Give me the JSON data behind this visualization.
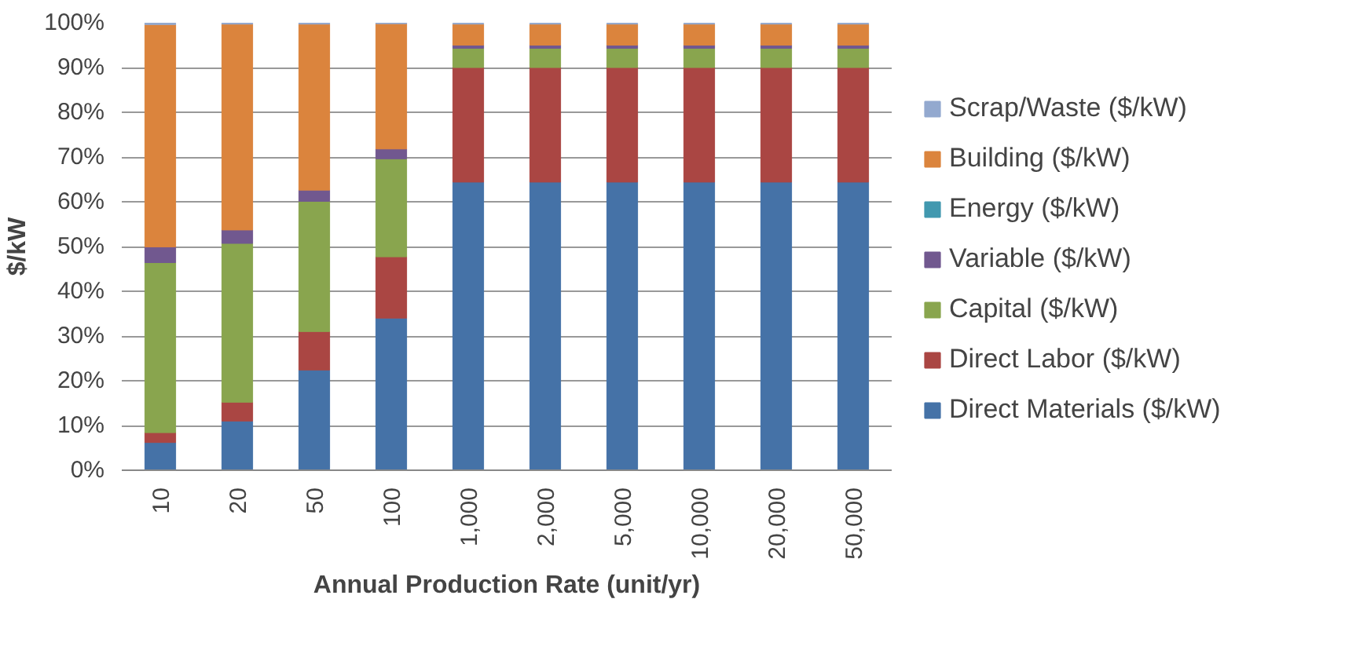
{
  "chart_data": {
    "type": "bar",
    "stacked": true,
    "xlabel": "Annual Production Rate (unit/yr)",
    "ylabel": "$/kW",
    "categories": [
      "10",
      "20",
      "50",
      "100",
      "1,000",
      "2,000",
      "5,000",
      "10,000",
      "20,000",
      "50,000"
    ],
    "series": [
      {
        "name": "Direct Materials ($/kW)",
        "color": "#4572a7",
        "values": [
          6.2,
          11,
          22.4,
          34,
          64.4,
          64.4,
          64.4,
          64.4,
          64.4,
          64.4
        ]
      },
      {
        "name": "Direct Labor ($/kW)",
        "color": "#aa4643",
        "values": [
          2.2,
          4.2,
          8.6,
          13.7,
          25.6,
          25.6,
          25.6,
          25.6,
          25.6,
          25.6
        ]
      },
      {
        "name": "Capital ($/kW)",
        "color": "#89a54e",
        "values": [
          38,
          35.5,
          29.1,
          21.9,
          4.3,
          4.3,
          4.3,
          4.3,
          4.3,
          4.3
        ]
      },
      {
        "name": "Variable ($/kW)",
        "color": "#71588f",
        "values": [
          3.5,
          3,
          2.5,
          2.2,
          0.7,
          0.7,
          0.7,
          0.7,
          0.7,
          0.7
        ]
      },
      {
        "name": "Energy ($/kW)",
        "color": "#4198af",
        "values": [
          null,
          null,
          null,
          null,
          null,
          null,
          null,
          null,
          null,
          null
        ]
      },
      {
        "name": "Building ($/kW)",
        "color": "#db843d",
        "values": [
          49.7,
          46,
          37.1,
          28,
          4.7,
          4.7,
          4.7,
          4.7,
          4.7,
          4.7
        ]
      },
      {
        "name": "Scrap/Waste ($/kW)",
        "color": "#93a9cf",
        "values": [
          0.4,
          0.3,
          0.3,
          0.2,
          0.2,
          0.2,
          0.2,
          0.2,
          0.2,
          0.2
        ]
      }
    ],
    "ylim": [
      0,
      100
    ],
    "yticks": [
      {
        "value": 0,
        "label": "0%"
      },
      {
        "value": 10,
        "label": "10%"
      },
      {
        "value": 20,
        "label": "20%"
      },
      {
        "value": 30,
        "label": "30%"
      },
      {
        "value": 40,
        "label": "40%"
      },
      {
        "value": 50,
        "label": "50%"
      },
      {
        "value": 60,
        "label": "60%"
      },
      {
        "value": 70,
        "label": "70%"
      },
      {
        "value": 80,
        "label": "80%"
      },
      {
        "value": 90,
        "label": "90%"
      },
      {
        "value": 100,
        "label": "100%"
      }
    ],
    "grid": "y",
    "legend": "right"
  }
}
